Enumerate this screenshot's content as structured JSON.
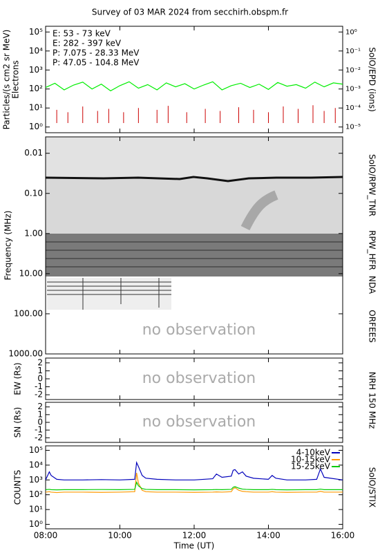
{
  "title": "Survey of 03 MAR 2024 from secchirh.obspm.fr",
  "chart_data": [
    {
      "type": "line",
      "log": true,
      "ylabel": "Particles/(s cm2 sr MeV)",
      "ylabel2": "Electrons",
      "y2label": "SolO/EPD (ions)",
      "xlim": [
        8,
        16
      ],
      "ylim": [
        0.5,
        200000
      ],
      "yticks": [
        {
          "value": 1,
          "label": "10⁰"
        },
        {
          "value": 10,
          "label": "10¹"
        },
        {
          "value": 100,
          "label": "10²"
        },
        {
          "value": 1000,
          "label": "10³"
        },
        {
          "value": 10000,
          "label": "10⁴"
        },
        {
          "value": 100000,
          "label": "10⁵"
        }
      ],
      "y2lim": [
        5e-06,
        2
      ],
      "y2ticks": [
        {
          "value": 1e-05,
          "label": "10⁻⁵"
        },
        {
          "value": 0.0001,
          "label": "10⁻⁴"
        },
        {
          "value": 0.001,
          "label": "10⁻³"
        },
        {
          "value": 0.01,
          "label": "10⁻²"
        },
        {
          "value": 0.1,
          "label": "10⁻¹"
        },
        {
          "value": 1,
          "label": "10⁰"
        }
      ],
      "series": [
        {
          "name": "E: 53 - 73 keV",
          "color": "#00ee00",
          "style": "line",
          "x": [
            8,
            8.25,
            8.5,
            8.75,
            9,
            9.25,
            9.5,
            9.75,
            10,
            10.25,
            10.5,
            10.75,
            11,
            11.25,
            11.5,
            11.75,
            12,
            12.25,
            12.5,
            12.75,
            13,
            13.25,
            13.5,
            13.75,
            14,
            14.25,
            14.5,
            14.75,
            15,
            15.25,
            15.5,
            15.75,
            16
          ],
          "values": [
            120,
            200,
            90,
            160,
            230,
            100,
            180,
            80,
            150,
            240,
            110,
            170,
            90,
            210,
            130,
            190,
            100,
            160,
            240,
            90,
            150,
            200,
            120,
            180,
            95,
            220,
            140,
            170,
            110,
            230,
            130,
            210,
            180
          ]
        },
        {
          "name": "E: 282 - 397 keV",
          "color": "#cc0000",
          "style": "spikes",
          "x": [
            8.3,
            8.6,
            9.0,
            9.4,
            9.7,
            10.1,
            10.5,
            11.0,
            11.3,
            11.8,
            12.3,
            12.7,
            13.2,
            13.6,
            14.0,
            14.4,
            14.8,
            15.2,
            15.5,
            15.8
          ],
          "values": [
            8,
            6,
            12,
            7,
            9,
            6,
            10,
            8,
            13,
            6,
            9,
            7,
            11,
            8,
            6,
            12,
            9,
            14,
            7,
            10
          ]
        },
        {
          "name": "P: 7.075 - 28.33 MeV",
          "color": "#000000"
        },
        {
          "name": "P: 47.05 - 104.8 MeV",
          "color": "#0000cc"
        }
      ]
    },
    {
      "type": "spectrogram",
      "log": true,
      "ylabel": "Frequency (MHz)",
      "xlim": [
        8,
        16
      ],
      "ylim": [
        1000,
        0.0039
      ],
      "yticks": [
        0.01,
        {
          "value": 0.1,
          "label": "0.10"
        },
        {
          "value": 1,
          "label": "1.00"
        },
        {
          "value": 10,
          "label": "10.00"
        },
        {
          "value": 100,
          "label": "100.00"
        },
        {
          "value": 1000,
          "label": "1000.00"
        }
      ],
      "instruments": [
        "SoIO/RPW_TNR",
        "RPW_HFR",
        "NDA",
        "ORFEES"
      ],
      "annotation": "no observation"
    },
    {
      "type": "empty",
      "ylabel": "EW (Rs)",
      "annotation": "no observation",
      "xlim": [
        8,
        16
      ],
      "ylim": [
        -2.6,
        2.6
      ],
      "yticks": [
        -2,
        -1,
        0,
        1,
        2
      ]
    },
    {
      "type": "empty",
      "ylabel": "SN (Rs)",
      "y2label": "NRH 150 MHz",
      "annotation": "no observation",
      "xlim": [
        8,
        16
      ],
      "ylim": [
        -2.6,
        2.6
      ],
      "yticks": [
        -2,
        -1,
        0,
        1,
        2
      ]
    },
    {
      "type": "line",
      "log": true,
      "ylabel": "COUNTS",
      "y2label": "SolO/STIX",
      "xlabel": "Time (UT)",
      "legend": "upper right",
      "xlim": [
        8,
        16
      ],
      "xticks": [
        {
          "value": 8,
          "label": "08:00"
        },
        {
          "value": 10,
          "label": "10:00"
        },
        {
          "value": 12,
          "label": "12:00"
        },
        {
          "value": 14,
          "label": "14:00"
        },
        {
          "value": 16,
          "label": "16:00"
        }
      ],
      "ylim": [
        0.5,
        200000
      ],
      "yticks": [
        {
          "value": 1,
          "label": "10⁰"
        },
        {
          "value": 10,
          "label": "10¹"
        },
        {
          "value": 100,
          "label": "10²"
        },
        {
          "value": 1000,
          "label": "10³"
        },
        {
          "value": 10000,
          "label": "10⁴"
        },
        {
          "value": 100000,
          "label": "10⁵"
        }
      ],
      "series": [
        {
          "name": "4-10keV",
          "color": "#0000bb",
          "style": "line",
          "x": [
            8.0,
            8.1,
            8.15,
            8.3,
            8.5,
            9,
            9.5,
            10,
            10.4,
            10.45,
            10.5,
            10.6,
            10.7,
            11,
            11.5,
            12,
            12.5,
            12.6,
            12.75,
            13,
            13.05,
            13.1,
            13.2,
            13.3,
            13.4,
            13.6,
            14,
            14.1,
            14.2,
            14.5,
            15,
            15.3,
            15.4,
            15.5,
            16
          ],
          "values": [
            1000,
            3500,
            2000,
            1100,
            1000,
            1000,
            1050,
            1000,
            1100,
            15000,
            8000,
            2000,
            1300,
            1100,
            1000,
            1000,
            1200,
            2500,
            1500,
            1800,
            4500,
            5000,
            2500,
            3500,
            1800,
            1300,
            1100,
            2000,
            1300,
            1000,
            1000,
            1100,
            5500,
            1500,
            1000
          ]
        },
        {
          "name": "10-15keV",
          "color": "#ff9900",
          "style": "line",
          "x": [
            8.0,
            8.1,
            8.15,
            8.3,
            8.5,
            9,
            9.5,
            10,
            10.4,
            10.45,
            10.5,
            10.6,
            10.7,
            11,
            11.5,
            12,
            12.5,
            12.6,
            12.75,
            13,
            13.05,
            13.1,
            13.2,
            13.3,
            13.4,
            13.6,
            14,
            14.1,
            14.2,
            14.5,
            15,
            15.3,
            15.4,
            15.5,
            16
          ],
          "values": [
            150,
            160,
            150,
            140,
            150,
            150,
            145,
            150,
            160,
            3000,
            600,
            200,
            160,
            150,
            150,
            145,
            150,
            155,
            150,
            160,
            250,
            300,
            200,
            170,
            160,
            150,
            150,
            160,
            150,
            145,
            150,
            150,
            170,
            150,
            150
          ]
        },
        {
          "name": "15-25keV",
          "color": "#00cc00",
          "style": "line",
          "x": [
            8.0,
            8.1,
            8.15,
            8.3,
            8.5,
            9,
            9.5,
            10,
            10.4,
            10.45,
            10.5,
            10.6,
            10.7,
            11,
            11.5,
            12,
            12.5,
            12.6,
            12.75,
            13,
            13.05,
            13.1,
            13.2,
            13.3,
            13.4,
            13.6,
            14,
            14.1,
            14.2,
            14.5,
            15,
            15.3,
            15.4,
            15.5,
            16
          ],
          "values": [
            220,
            230,
            220,
            215,
            220,
            220,
            225,
            220,
            230,
            700,
            400,
            260,
            230,
            220,
            220,
            215,
            220,
            225,
            220,
            230,
            320,
            350,
            280,
            240,
            230,
            220,
            220,
            230,
            220,
            215,
            220,
            220,
            240,
            220,
            220
          ]
        }
      ]
    }
  ]
}
